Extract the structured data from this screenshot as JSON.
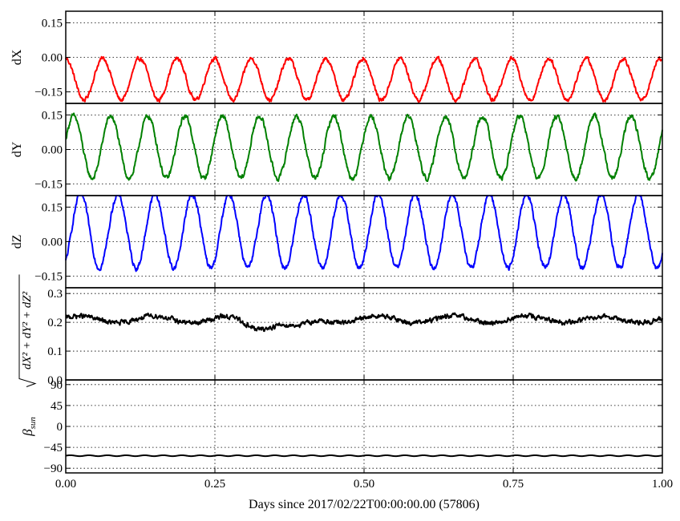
{
  "figure": {
    "xlabel": "Days since 2017/02/22T00:00:00.00 (57806)"
  },
  "chart_data": {
    "type": "line",
    "x_axis": {
      "range": [
        0.0,
        1.0
      ],
      "ticks": [
        0.0,
        0.25,
        0.5,
        0.75,
        1.0
      ],
      "tick_labels": [
        "0.00",
        "0.25",
        "0.50",
        "0.75",
        "1.00"
      ],
      "grid": true,
      "shared": true
    },
    "panels": [
      {
        "id": "dx",
        "ylabel": "dX",
        "ylim": [
          -0.2,
          0.2
        ],
        "yticks": [
          -0.15,
          0.0,
          0.15
        ],
        "ytick_labels": [
          "−0.15",
          "0.00",
          "0.15"
        ],
        "grid": true,
        "series": [
          {
            "color": "#ff0000",
            "model": {
              "mean": -0.095,
              "amplitude": 0.09,
              "cycles": 16.05,
              "phase": 1.6,
              "noise": 0.01
            }
          }
        ]
      },
      {
        "id": "dy",
        "ylabel": "dY",
        "ylim": [
          -0.2,
          0.2
        ],
        "yticks": [
          -0.15,
          0.0,
          0.15
        ],
        "ytick_labels": [
          "−0.15",
          "0.00",
          "0.15"
        ],
        "grid": true,
        "series": [
          {
            "color": "#008000",
            "model": {
              "mean": 0.01,
              "amplitude": 0.135,
              "cycles": 16.05,
              "phase": 0.25,
              "noise": 0.012
            }
          }
        ]
      },
      {
        "id": "dz",
        "ylabel": "dZ",
        "ylim": [
          -0.2,
          0.2
        ],
        "yticks": [
          -0.15,
          0.0,
          0.15
        ],
        "ytick_labels": [
          "−0.15",
          "0.00",
          "0.15"
        ],
        "grid": true,
        "series": [
          {
            "color": "#0000ff",
            "model": {
              "mean": 0.045,
              "amplitude": 0.16,
              "cycles": 16.05,
              "phase": -0.95,
              "noise": 0.012,
              "clip_max": 0.2
            }
          }
        ]
      },
      {
        "id": "dmag",
        "ylabel": "sqrt(dX^2+dY^2+dZ^2)",
        "ylim": [
          0.0,
          0.32
        ],
        "yticks": [
          0.0,
          0.1,
          0.2,
          0.3
        ],
        "ytick_labels": [
          "0.0",
          "0.1",
          "0.2",
          "0.3"
        ],
        "grid": true,
        "series": [
          {
            "color": "#000000",
            "model": {
              "mean": 0.21,
              "amplitude": 0.012,
              "cycles": 8.0,
              "phase": 0.4,
              "noise": 0.009,
              "dips": [
                [
                  0.32,
                  0.025
                ],
                [
                  0.39,
                  0.03
                ]
              ]
            }
          }
        ]
      },
      {
        "id": "beta",
        "ylabel": "βsun",
        "ylim": [
          -100,
          100
        ],
        "yticks": [
          -90,
          -45,
          0,
          45,
          90
        ],
        "ytick_labels": [
          "−90",
          "−45",
          "0",
          "45",
          "90"
        ],
        "grid": true,
        "series": [
          {
            "color": "#000000",
            "model": {
              "mean": -63,
              "amplitude": 1.0,
              "cycles": 32.1,
              "phase": 0.0,
              "noise": 0.0
            }
          }
        ]
      }
    ]
  }
}
